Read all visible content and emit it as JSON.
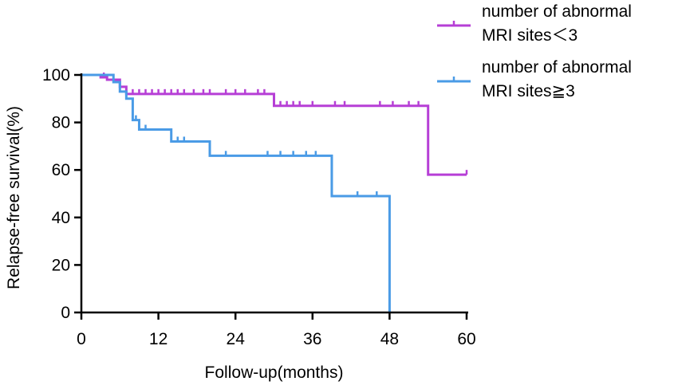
{
  "chart_data": {
    "type": "line",
    "subtype": "kaplan-meier-step",
    "xlabel": "Follow-up(months)",
    "ylabel": "Relapse-free survival(%)",
    "xlim": [
      0,
      60
    ],
    "ylim": [
      0,
      100
    ],
    "xticks": [
      0,
      12,
      24,
      36,
      48,
      60
    ],
    "yticks": [
      0,
      20,
      40,
      60,
      80,
      100
    ],
    "grid": false,
    "legend_position": "top-right",
    "series": [
      {
        "name": "number of abnormal MRI sites＜3",
        "legend_lines": [
          "number of abnormal",
          "MRI sites＜3"
        ],
        "color": "#b63fd6",
        "steps": [
          [
            0,
            100
          ],
          [
            3,
            99
          ],
          [
            4,
            98
          ],
          [
            6,
            95
          ],
          [
            7,
            92
          ],
          [
            30,
            87
          ],
          [
            54,
            58
          ],
          [
            60,
            58
          ]
        ],
        "censored": [
          3.5,
          8,
          9,
          10,
          11,
          12,
          13,
          14,
          15,
          16,
          17.5,
          19,
          20,
          22.5,
          24,
          25.5,
          27.5,
          28.5,
          31,
          32,
          33,
          34,
          36,
          39.5,
          41,
          46.5,
          48.5,
          51,
          52.5,
          60
        ]
      },
      {
        "name": "number of abnormal MRI sites≧3",
        "legend_lines": [
          "number of abnormal",
          "MRI sites≧3"
        ],
        "color": "#4a9be6",
        "steps": [
          [
            0,
            100
          ],
          [
            5,
            97
          ],
          [
            6,
            93
          ],
          [
            7,
            90
          ],
          [
            8,
            81
          ],
          [
            9,
            77
          ],
          [
            14,
            72
          ],
          [
            20,
            66
          ],
          [
            39,
            49
          ],
          [
            48,
            0
          ]
        ],
        "censored": [
          8.5,
          10,
          15,
          16,
          22.5,
          29,
          31,
          33,
          35,
          36.5,
          43,
          46
        ]
      }
    ]
  }
}
